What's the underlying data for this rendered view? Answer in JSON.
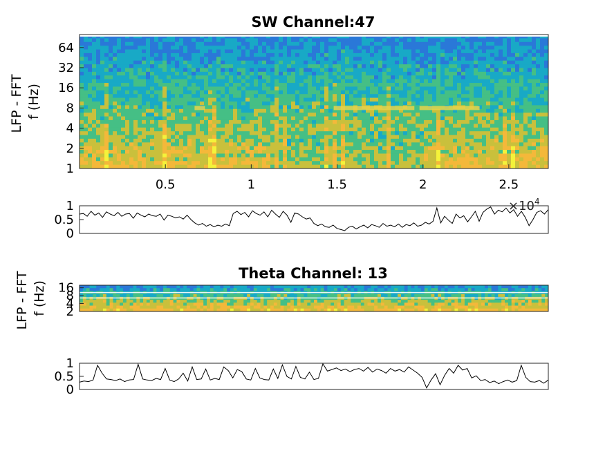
{
  "chart_data": [
    {
      "type": "heatmap",
      "title": "SW Channel:47",
      "ylabel": "LFP - FFT\nf (Hz)",
      "y_scale": "log2",
      "yticks": [
        "1",
        "2",
        "4",
        "8",
        "16",
        "32",
        "64"
      ],
      "xticks": [
        "0.5",
        "1",
        "1.5",
        "2",
        "2.5"
      ],
      "x_exponent": "×10^4",
      "xlim": [
        0,
        27300
      ],
      "ylim": [
        1,
        100
      ],
      "colormap": [
        "#2a78d8",
        "#18a9c6",
        "#45bf85",
        "#c9c03c",
        "#f4b83a",
        "#f4f23a"
      ],
      "bright_band_hz": 8,
      "bright_band_intervals": [
        [
          6700,
          7300
        ],
        [
          14800,
          19500
        ],
        [
          19800,
          23300
        ]
      ]
    },
    {
      "type": "line",
      "title": "",
      "ylim": [
        0,
        1
      ],
      "yticks": [
        "0",
        "0.5",
        "1"
      ],
      "xlim": [
        0,
        27300
      ],
      "x_exponent": "×10^4",
      "values": [
        0.7,
        0.72,
        0.62,
        0.8,
        0.66,
        0.74,
        0.58,
        0.78,
        0.7,
        0.64,
        0.76,
        0.62,
        0.7,
        0.72,
        0.55,
        0.74,
        0.66,
        0.6,
        0.7,
        0.64,
        0.62,
        0.7,
        0.48,
        0.66,
        0.62,
        0.56,
        0.6,
        0.52,
        0.66,
        0.5,
        0.38,
        0.3,
        0.36,
        0.26,
        0.32,
        0.24,
        0.3,
        0.26,
        0.34,
        0.28,
        0.72,
        0.8,
        0.68,
        0.76,
        0.6,
        0.82,
        0.72,
        0.66,
        0.78,
        0.6,
        0.84,
        0.7,
        0.58,
        0.8,
        0.66,
        0.4,
        0.74,
        0.7,
        0.6,
        0.52,
        0.56,
        0.36,
        0.28,
        0.34,
        0.24,
        0.22,
        0.3,
        0.18,
        0.14,
        0.1,
        0.22,
        0.26,
        0.16,
        0.24,
        0.3,
        0.2,
        0.32,
        0.28,
        0.22,
        0.36,
        0.26,
        0.3,
        0.24,
        0.34,
        0.22,
        0.32,
        0.28,
        0.38,
        0.26,
        0.3,
        0.4,
        0.34,
        0.44,
        0.92,
        0.38,
        0.62,
        0.48,
        0.36,
        0.7,
        0.56,
        0.64,
        0.42,
        0.6,
        0.8,
        0.44,
        0.76,
        0.88,
        0.96,
        0.7,
        0.84,
        0.78,
        0.92,
        0.74,
        0.86,
        0.62,
        0.8,
        0.58,
        0.28,
        0.5,
        0.76,
        0.82,
        0.7,
        0.86
      ]
    },
    {
      "type": "heatmap",
      "title": "Theta Channel: 13",
      "ylabel": "LFP - FFT\nf (Hz)",
      "y_scale": "log2",
      "yticks": [
        "2",
        "4",
        "8",
        "16"
      ],
      "xlim": [
        0,
        27300
      ],
      "ylim": [
        2,
        20
      ],
      "colormap": [
        "#2a78d8",
        "#18a9c6",
        "#45bf85",
        "#c9c03c",
        "#f4b83a",
        "#f4f23a"
      ],
      "white_lines_hz": [
        6.5,
        10.5
      ]
    },
    {
      "type": "line",
      "title": "",
      "ylim": [
        0,
        1
      ],
      "yticks": [
        "0",
        "0.5",
        "1"
      ],
      "xlim": [
        0,
        27300
      ],
      "values": [
        0.28,
        0.32,
        0.3,
        0.36,
        0.92,
        0.62,
        0.4,
        0.38,
        0.34,
        0.4,
        0.3,
        0.36,
        0.38,
        0.96,
        0.4,
        0.36,
        0.34,
        0.42,
        0.38,
        0.8,
        0.36,
        0.3,
        0.4,
        0.62,
        0.32,
        0.86,
        0.38,
        0.4,
        0.78,
        0.36,
        0.42,
        0.38,
        0.86,
        0.72,
        0.44,
        0.76,
        0.68,
        0.4,
        0.36,
        0.8,
        0.44,
        0.38,
        0.36,
        0.78,
        0.42,
        0.94,
        0.5,
        0.4,
        0.88,
        0.46,
        0.4,
        0.66,
        0.38,
        0.42,
        0.98,
        0.7,
        0.76,
        0.82,
        0.72,
        0.78,
        0.68,
        0.76,
        0.8,
        0.7,
        0.84,
        0.66,
        0.78,
        0.72,
        0.62,
        0.8,
        0.7,
        0.76,
        0.66,
        0.86,
        0.74,
        0.62,
        0.46,
        0.06,
        0.36,
        0.6,
        0.18,
        0.54,
        0.8,
        0.62,
        0.92,
        0.74,
        0.8,
        0.44,
        0.52,
        0.34,
        0.38,
        0.26,
        0.32,
        0.22,
        0.3,
        0.36,
        0.28,
        0.34,
        0.92,
        0.46,
        0.3,
        0.28,
        0.34,
        0.24,
        0.36
      ]
    }
  ]
}
